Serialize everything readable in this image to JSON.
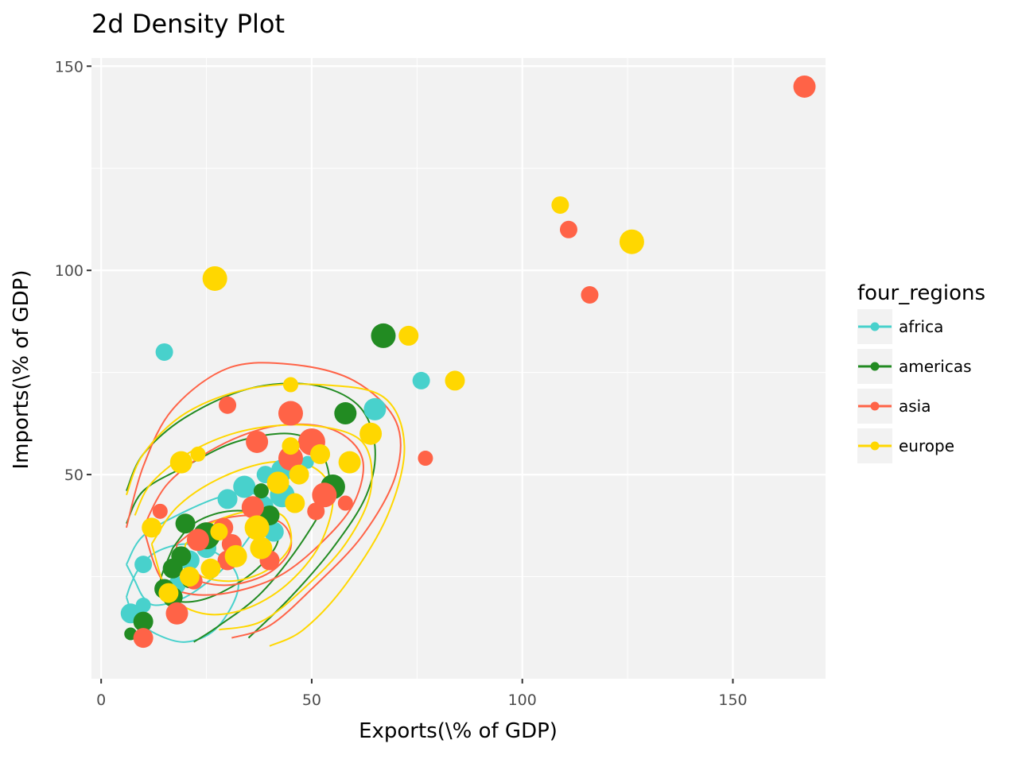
{
  "chart_data": {
    "type": "scatter",
    "title": "2d Density Plot",
    "xlabel": "Exports(\\% of GDP)",
    "ylabel": "Imports(\\% of GDP)",
    "xlim": [
      -2.3,
      172
    ],
    "ylim": [
      0,
      152
    ],
    "x_ticks": [
      0,
      50,
      100,
      150
    ],
    "y_ticks": [
      50,
      100,
      150
    ],
    "grid": true,
    "panel_background": "#f2f2f2",
    "legend": {
      "title": "four_regions",
      "placement": "right"
    },
    "series": [
      {
        "name": "africa",
        "color": "#48d1cc",
        "points": [
          {
            "x": 15,
            "y": 80,
            "s": 4
          },
          {
            "x": 76,
            "y": 73,
            "s": 4
          },
          {
            "x": 65,
            "y": 66,
            "s": 6
          },
          {
            "x": 49,
            "y": 53,
            "s": 2
          },
          {
            "x": 43,
            "y": 51,
            "s": 6
          },
          {
            "x": 39,
            "y": 50,
            "s": 4
          },
          {
            "x": 34,
            "y": 47,
            "s": 6
          },
          {
            "x": 43,
            "y": 45,
            "s": 7
          },
          {
            "x": 30,
            "y": 44,
            "s": 5
          },
          {
            "x": 38,
            "y": 42,
            "s": 7
          },
          {
            "x": 41,
            "y": 36,
            "s": 5
          },
          {
            "x": 21,
            "y": 29,
            "s": 5
          },
          {
            "x": 17,
            "y": 27,
            "s": 5
          },
          {
            "x": 10,
            "y": 28,
            "s": 4
          },
          {
            "x": 25,
            "y": 32,
            "s": 5
          },
          {
            "x": 18,
            "y": 23,
            "s": 4
          },
          {
            "x": 7,
            "y": 16,
            "s": 5
          },
          {
            "x": 10,
            "y": 18,
            "s": 3
          }
        ],
        "density_contours": [
          [
            [
              6,
              28
            ],
            [
              10,
              35
            ],
            [
              20,
              41
            ],
            [
              30,
              45
            ],
            [
              37,
              45
            ],
            [
              38,
              40
            ],
            [
              34,
              33
            ],
            [
              28,
              26
            ],
            [
              20,
              20
            ],
            [
              13,
              18
            ],
            [
              10,
              20
            ],
            [
              8,
              24
            ],
            [
              6,
              28
            ]
          ],
          [
            [
              6,
              20
            ],
            [
              8,
              15
            ],
            [
              13,
              11
            ],
            [
              20,
              9
            ],
            [
              27,
              12
            ],
            [
              32,
              20
            ],
            [
              32,
              26
            ],
            [
              27,
              31
            ],
            [
              20,
              33
            ],
            [
              13,
              31
            ],
            [
              9,
              27
            ],
            [
              7,
              23
            ],
            [
              6,
              20
            ]
          ]
        ]
      },
      {
        "name": "americas",
        "color": "#228b22",
        "points": [
          {
            "x": 67,
            "y": 84,
            "s": 7
          },
          {
            "x": 58,
            "y": 65,
            "s": 6
          },
          {
            "x": 55,
            "y": 47,
            "s": 7
          },
          {
            "x": 38,
            "y": 46,
            "s": 3
          },
          {
            "x": 40,
            "y": 40,
            "s": 5
          },
          {
            "x": 20,
            "y": 38,
            "s": 5
          },
          {
            "x": 25,
            "y": 35,
            "s": 8
          },
          {
            "x": 19,
            "y": 30,
            "s": 5
          },
          {
            "x": 17,
            "y": 27,
            "s": 5
          },
          {
            "x": 15,
            "y": 22,
            "s": 5
          },
          {
            "x": 17,
            "y": 20,
            "s": 5
          },
          {
            "x": 21,
            "y": 24,
            "s": 3
          },
          {
            "x": 10,
            "y": 14,
            "s": 5
          },
          {
            "x": 7,
            "y": 11,
            "s": 2
          }
        ],
        "density_contours": [
          [
            [
              6,
              46
            ],
            [
              10,
              55
            ],
            [
              20,
              64
            ],
            [
              35,
              71
            ],
            [
              50,
              72
            ],
            [
              61,
              67
            ],
            [
              65,
              57
            ],
            [
              63,
              45
            ],
            [
              55,
              32
            ],
            [
              45,
              20
            ],
            [
              35,
              10
            ]
          ],
          [
            [
              6,
              38
            ],
            [
              10,
              46
            ],
            [
              20,
              52
            ],
            [
              32,
              58
            ],
            [
              45,
              60
            ],
            [
              52,
              56
            ],
            [
              54,
              46
            ],
            [
              48,
              34
            ],
            [
              38,
              21
            ],
            [
              28,
              13
            ],
            [
              22,
              9
            ]
          ],
          [
            [
              17,
              32
            ],
            [
              22,
              38
            ],
            [
              30,
              41
            ],
            [
              38,
              40
            ],
            [
              42,
              34
            ],
            [
              36,
              26
            ],
            [
              26,
              20
            ],
            [
              18,
              19
            ],
            [
              14,
              23
            ],
            [
              17,
              32
            ]
          ]
        ]
      },
      {
        "name": "asia",
        "color": "#ff6347",
        "points": [
          {
            "x": 167,
            "y": 145,
            "s": 6
          },
          {
            "x": 111,
            "y": 110,
            "s": 4
          },
          {
            "x": 116,
            "y": 94,
            "s": 4
          },
          {
            "x": 30,
            "y": 67,
            "s": 4
          },
          {
            "x": 45,
            "y": 65,
            "s": 7
          },
          {
            "x": 37,
            "y": 58,
            "s": 6
          },
          {
            "x": 50,
            "y": 58,
            "s": 8
          },
          {
            "x": 77,
            "y": 54,
            "s": 3
          },
          {
            "x": 45,
            "y": 54,
            "s": 7
          },
          {
            "x": 53,
            "y": 45,
            "s": 7
          },
          {
            "x": 58,
            "y": 43,
            "s": 3
          },
          {
            "x": 36,
            "y": 42,
            "s": 6
          },
          {
            "x": 51,
            "y": 41,
            "s": 4
          },
          {
            "x": 14,
            "y": 41,
            "s": 3
          },
          {
            "x": 29,
            "y": 37,
            "s": 5
          },
          {
            "x": 23,
            "y": 34,
            "s": 6
          },
          {
            "x": 31,
            "y": 33,
            "s": 5
          },
          {
            "x": 30,
            "y": 29,
            "s": 5
          },
          {
            "x": 40,
            "y": 29,
            "s": 5
          },
          {
            "x": 22,
            "y": 24,
            "s": 4
          },
          {
            "x": 18,
            "y": 16,
            "s": 6
          },
          {
            "x": 10,
            "y": 10,
            "s": 5
          }
        ],
        "density_contours": [
          [
            [
              6,
              37
            ],
            [
              10,
              52
            ],
            [
              17,
              66
            ],
            [
              30,
              76
            ],
            [
              45,
              77
            ],
            [
              60,
              73
            ],
            [
              70,
              63
            ],
            [
              70,
              50
            ],
            [
              62,
              35
            ],
            [
              50,
              22
            ],
            [
              40,
              13
            ],
            [
              31,
              10
            ]
          ],
          [
            [
              10,
              37
            ],
            [
              16,
              48
            ],
            [
              28,
              57
            ],
            [
              42,
              62
            ],
            [
              55,
              61
            ],
            [
              62,
              54
            ],
            [
              60,
              43
            ],
            [
              52,
              33
            ],
            [
              42,
              25
            ],
            [
              30,
              21
            ],
            [
              20,
              21
            ],
            [
              14,
              25
            ],
            [
              10,
              37
            ]
          ],
          [
            [
              18,
              33
            ],
            [
              25,
              38
            ],
            [
              35,
              40
            ],
            [
              43,
              38
            ],
            [
              45,
              32
            ],
            [
              40,
              26
            ],
            [
              31,
              23
            ],
            [
              23,
              24
            ],
            [
              18,
              28
            ],
            [
              18,
              33
            ]
          ]
        ]
      },
      {
        "name": "europe",
        "color": "#ffd700",
        "points": [
          {
            "x": 109,
            "y": 116,
            "s": 4
          },
          {
            "x": 126,
            "y": 107,
            "s": 7
          },
          {
            "x": 27,
            "y": 98,
            "s": 7
          },
          {
            "x": 73,
            "y": 84,
            "s": 5
          },
          {
            "x": 84,
            "y": 73,
            "s": 5
          },
          {
            "x": 45,
            "y": 72,
            "s": 3
          },
          {
            "x": 64,
            "y": 60,
            "s": 6
          },
          {
            "x": 45,
            "y": 57,
            "s": 4
          },
          {
            "x": 52,
            "y": 55,
            "s": 5
          },
          {
            "x": 23,
            "y": 55,
            "s": 3
          },
          {
            "x": 19,
            "y": 53,
            "s": 6
          },
          {
            "x": 59,
            "y": 53,
            "s": 6
          },
          {
            "x": 47,
            "y": 50,
            "s": 5
          },
          {
            "x": 42,
            "y": 48,
            "s": 6
          },
          {
            "x": 46,
            "y": 43,
            "s": 5
          },
          {
            "x": 12,
            "y": 37,
            "s": 5
          },
          {
            "x": 37,
            "y": 37,
            "s": 7
          },
          {
            "x": 28,
            "y": 36,
            "s": 4
          },
          {
            "x": 38,
            "y": 32,
            "s": 6
          },
          {
            "x": 32,
            "y": 30,
            "s": 6
          },
          {
            "x": 26,
            "y": 27,
            "s": 5
          },
          {
            "x": 21,
            "y": 25,
            "s": 5
          },
          {
            "x": 16,
            "y": 21,
            "s": 5
          }
        ],
        "density_contours": [
          [
            [
              6,
              45
            ],
            [
              10,
              55
            ],
            [
              20,
              65
            ],
            [
              35,
              71
            ],
            [
              52,
              72
            ],
            [
              67,
              69
            ],
            [
              72,
              57
            ],
            [
              68,
              40
            ],
            [
              58,
              23
            ],
            [
              48,
              12
            ],
            [
              40,
              8
            ]
          ],
          [
            [
              8,
              40
            ],
            [
              12,
              48
            ],
            [
              22,
              56
            ],
            [
              35,
              61
            ],
            [
              50,
              62
            ],
            [
              62,
              58
            ],
            [
              64,
              46
            ],
            [
              58,
              33
            ],
            [
              48,
              22
            ],
            [
              38,
              14
            ],
            [
              28,
              12
            ]
          ],
          [
            [
              12,
              33
            ],
            [
              18,
              42
            ],
            [
              28,
              49
            ],
            [
              40,
              53
            ],
            [
              50,
              52
            ],
            [
              55,
              45
            ],
            [
              52,
              33
            ],
            [
              44,
              23
            ],
            [
              34,
              17
            ],
            [
              24,
              16
            ],
            [
              16,
              21
            ],
            [
              12,
              33
            ]
          ],
          [
            [
              20,
              33
            ],
            [
              26,
              38
            ],
            [
              35,
              41
            ],
            [
              43,
              40
            ],
            [
              45,
              33
            ],
            [
              40,
              27
            ],
            [
              32,
              24
            ],
            [
              24,
              25
            ],
            [
              20,
              29
            ],
            [
              20,
              33
            ]
          ]
        ]
      }
    ]
  }
}
